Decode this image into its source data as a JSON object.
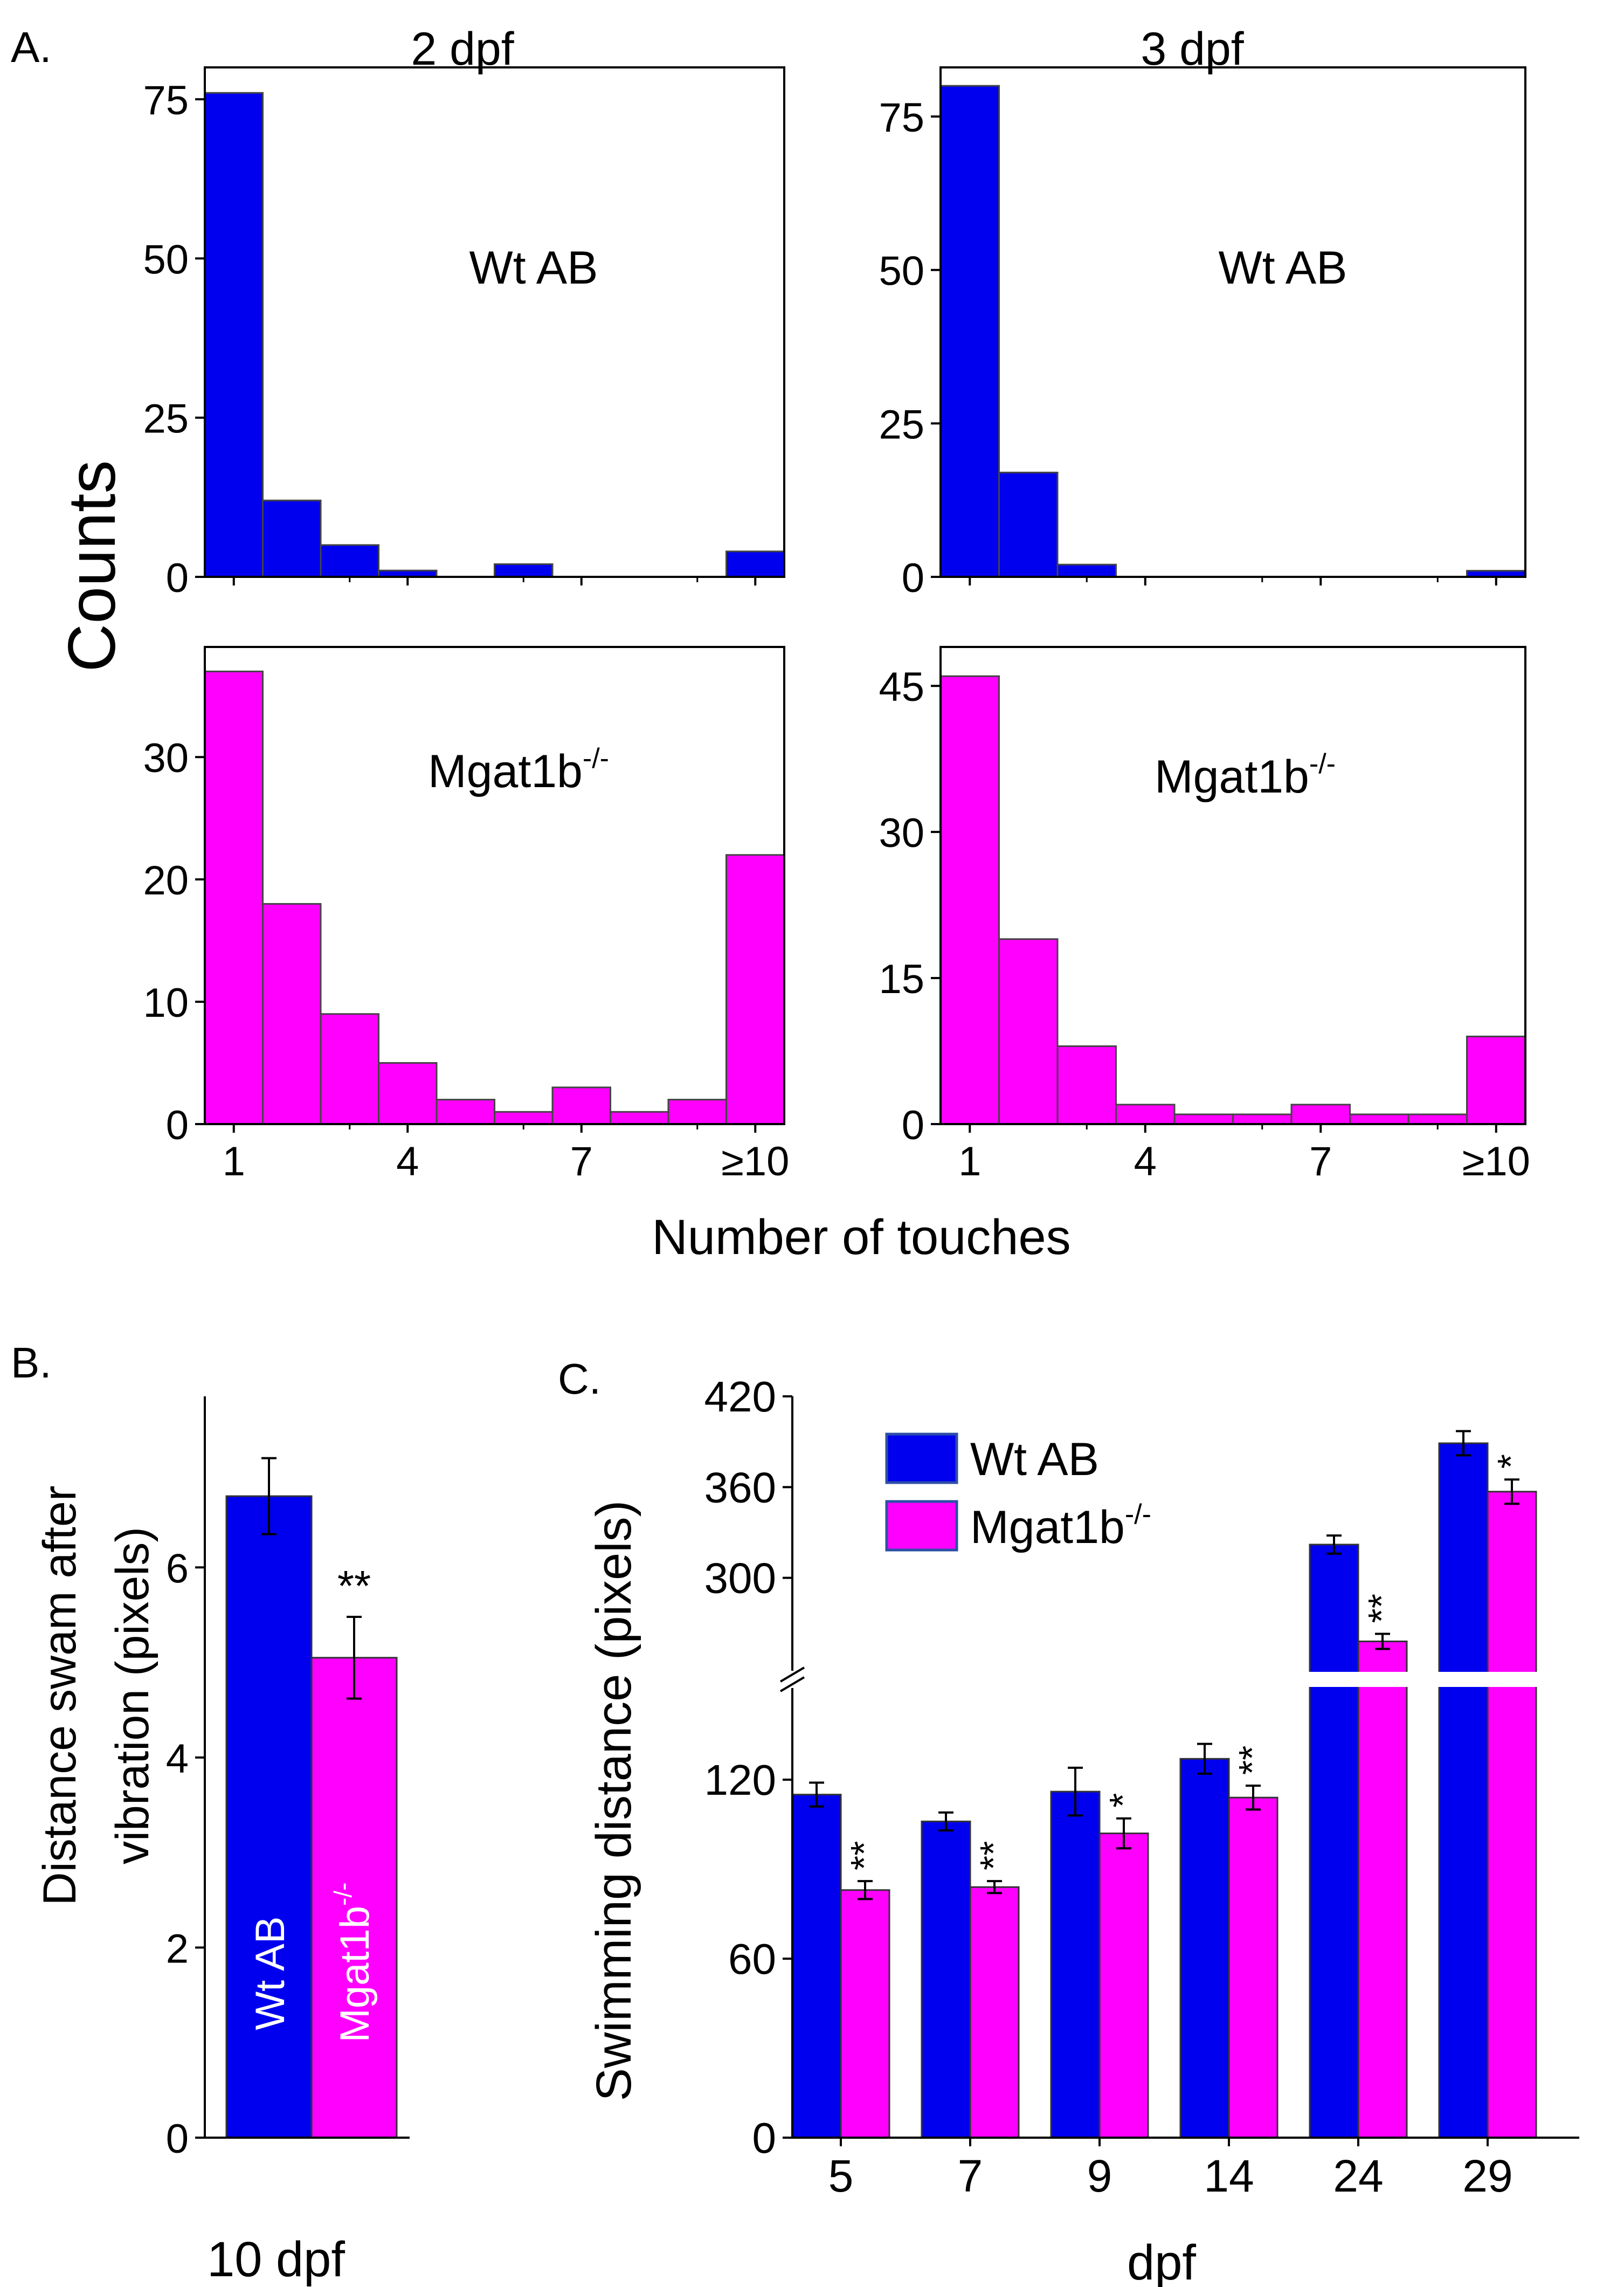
{
  "panel_a": {
    "letter": "A.",
    "column_titles": [
      "2 dpf",
      "3 dpf"
    ],
    "ylabel": "Counts",
    "xlabel": "Number of touches",
    "genotype_labels": {
      "wt": "Wt AB",
      "mut_base": "Mgat1b",
      "mut_sup": "-/-"
    }
  },
  "panel_b": {
    "letter": "B.",
    "ylabel_line1": "Distance swam after",
    "ylabel_line2": "vibration (pixels)",
    "xlabel": "10 dpf",
    "bar_labels": [
      "Wt AB",
      "Mgat1b",
      "-/-"
    ],
    "significance": "**"
  },
  "panel_c": {
    "letter": "C.",
    "ylabel": "Swimming distance (pixels)",
    "xlabel": "dpf",
    "legend": [
      "Wt AB",
      "Mgat1b",
      "-/-"
    ]
  },
  "colors": {
    "wt": "#0000ee",
    "mut": "#ff00ff"
  },
  "chart_data": [
    {
      "id": "A-2dpf-wt",
      "type": "bar",
      "title": "2 dpf",
      "series_name": "Wt AB",
      "categories": [
        1,
        2,
        3,
        4,
        5,
        6,
        7,
        8,
        9,
        10
      ],
      "values": [
        76,
        12,
        5,
        1,
        0,
        2,
        0,
        0,
        0,
        4
      ],
      "ylim": [
        0,
        80
      ],
      "yticks": [
        0,
        25,
        50,
        75
      ],
      "xticks": [
        "1",
        "4",
        "7",
        "≥10"
      ],
      "xlabel": "Number of touches",
      "ylabel": "Counts"
    },
    {
      "id": "A-3dpf-wt",
      "type": "bar",
      "title": "3 dpf",
      "series_name": "Wt AB",
      "categories": [
        1,
        2,
        3,
        4,
        5,
        6,
        7,
        8,
        9,
        10
      ],
      "values": [
        80,
        17,
        2,
        0,
        0,
        0,
        0,
        0,
        0,
        1
      ],
      "ylim": [
        0,
        83
      ],
      "yticks": [
        0,
        25,
        50,
        75
      ],
      "xticks": [
        "1",
        "4",
        "7",
        "≥10"
      ],
      "xlabel": "Number of touches",
      "ylabel": "Counts"
    },
    {
      "id": "A-2dpf-mut",
      "type": "bar",
      "title": "2 dpf",
      "series_name": "Mgat1b-/-",
      "categories": [
        1,
        2,
        3,
        4,
        5,
        6,
        7,
        8,
        9,
        10
      ],
      "values": [
        37,
        18,
        9,
        5,
        2,
        1,
        3,
        1,
        2,
        22
      ],
      "ylim": [
        0,
        39
      ],
      "yticks": [
        0,
        10,
        20,
        30
      ],
      "xticks": [
        "1",
        "4",
        "7",
        "≥10"
      ],
      "xlabel": "Number of touches",
      "ylabel": "Counts"
    },
    {
      "id": "A-3dpf-mut",
      "type": "bar",
      "title": "3 dpf",
      "series_name": "Mgat1b-/-",
      "categories": [
        1,
        2,
        3,
        4,
        5,
        6,
        7,
        8,
        9,
        10
      ],
      "values": [
        46,
        19,
        8,
        2,
        1,
        1,
        2,
        1,
        1,
        9
      ],
      "ylim": [
        0,
        49
      ],
      "yticks": [
        0,
        15,
        30,
        45
      ],
      "xticks": [
        "1",
        "4",
        "7",
        "≥10"
      ],
      "xlabel": "Number of touches",
      "ylabel": "Counts"
    },
    {
      "id": "B",
      "type": "bar",
      "title": "",
      "categories": [
        "Wt AB",
        "Mgat1b-/-"
      ],
      "values": [
        6.75,
        5.05
      ],
      "errors": [
        0.4,
        0.43
      ],
      "ylim": [
        0,
        7.8
      ],
      "yticks": [
        0,
        2,
        4,
        6
      ],
      "xlabel": "10 dpf",
      "ylabel": "Distance swam after vibration (pixels)",
      "annotations": [
        "",
        "**"
      ]
    },
    {
      "id": "C",
      "type": "bar",
      "title": "",
      "categories": [
        "5",
        "7",
        "9",
        "14",
        "24",
        "29"
      ],
      "series": [
        {
          "name": "Wt AB",
          "values": [
            115,
            106,
            116,
            127,
            322,
            389
          ],
          "errors": [
            4,
            3,
            8,
            5,
            6,
            8
          ]
        },
        {
          "name": "Mgat1b-/-",
          "values": [
            83,
            84,
            102,
            114,
            258,
            357
          ],
          "errors": [
            3,
            2,
            5,
            4,
            5,
            8
          ]
        }
      ],
      "significance": [
        "**",
        "**",
        "*",
        "**",
        "**",
        "*"
      ],
      "y_axis_break": [
        150,
        240
      ],
      "yticks": [
        0,
        60,
        120,
        300,
        360,
        420
      ],
      "ylim": [
        0,
        420
      ],
      "xlabel": "dpf",
      "ylabel": "Swimming distance (pixels)"
    }
  ]
}
